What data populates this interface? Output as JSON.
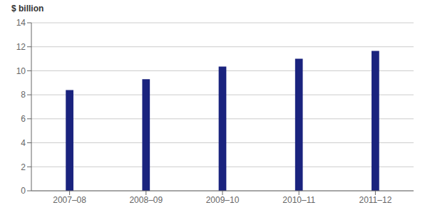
{
  "chart_data": {
    "type": "bar",
    "ylabel": "$ billion",
    "categories": [
      "2007–08",
      "2008–09",
      "2009–10",
      "2010–11",
      "2011–12"
    ],
    "values": [
      8.4,
      9.3,
      10.35,
      11.0,
      11.65
    ],
    "color": "#1a237e",
    "ylim": [
      0,
      14
    ],
    "yticks": [
      0,
      2,
      4,
      6,
      8,
      10,
      12,
      14
    ],
    "grid": true
  }
}
